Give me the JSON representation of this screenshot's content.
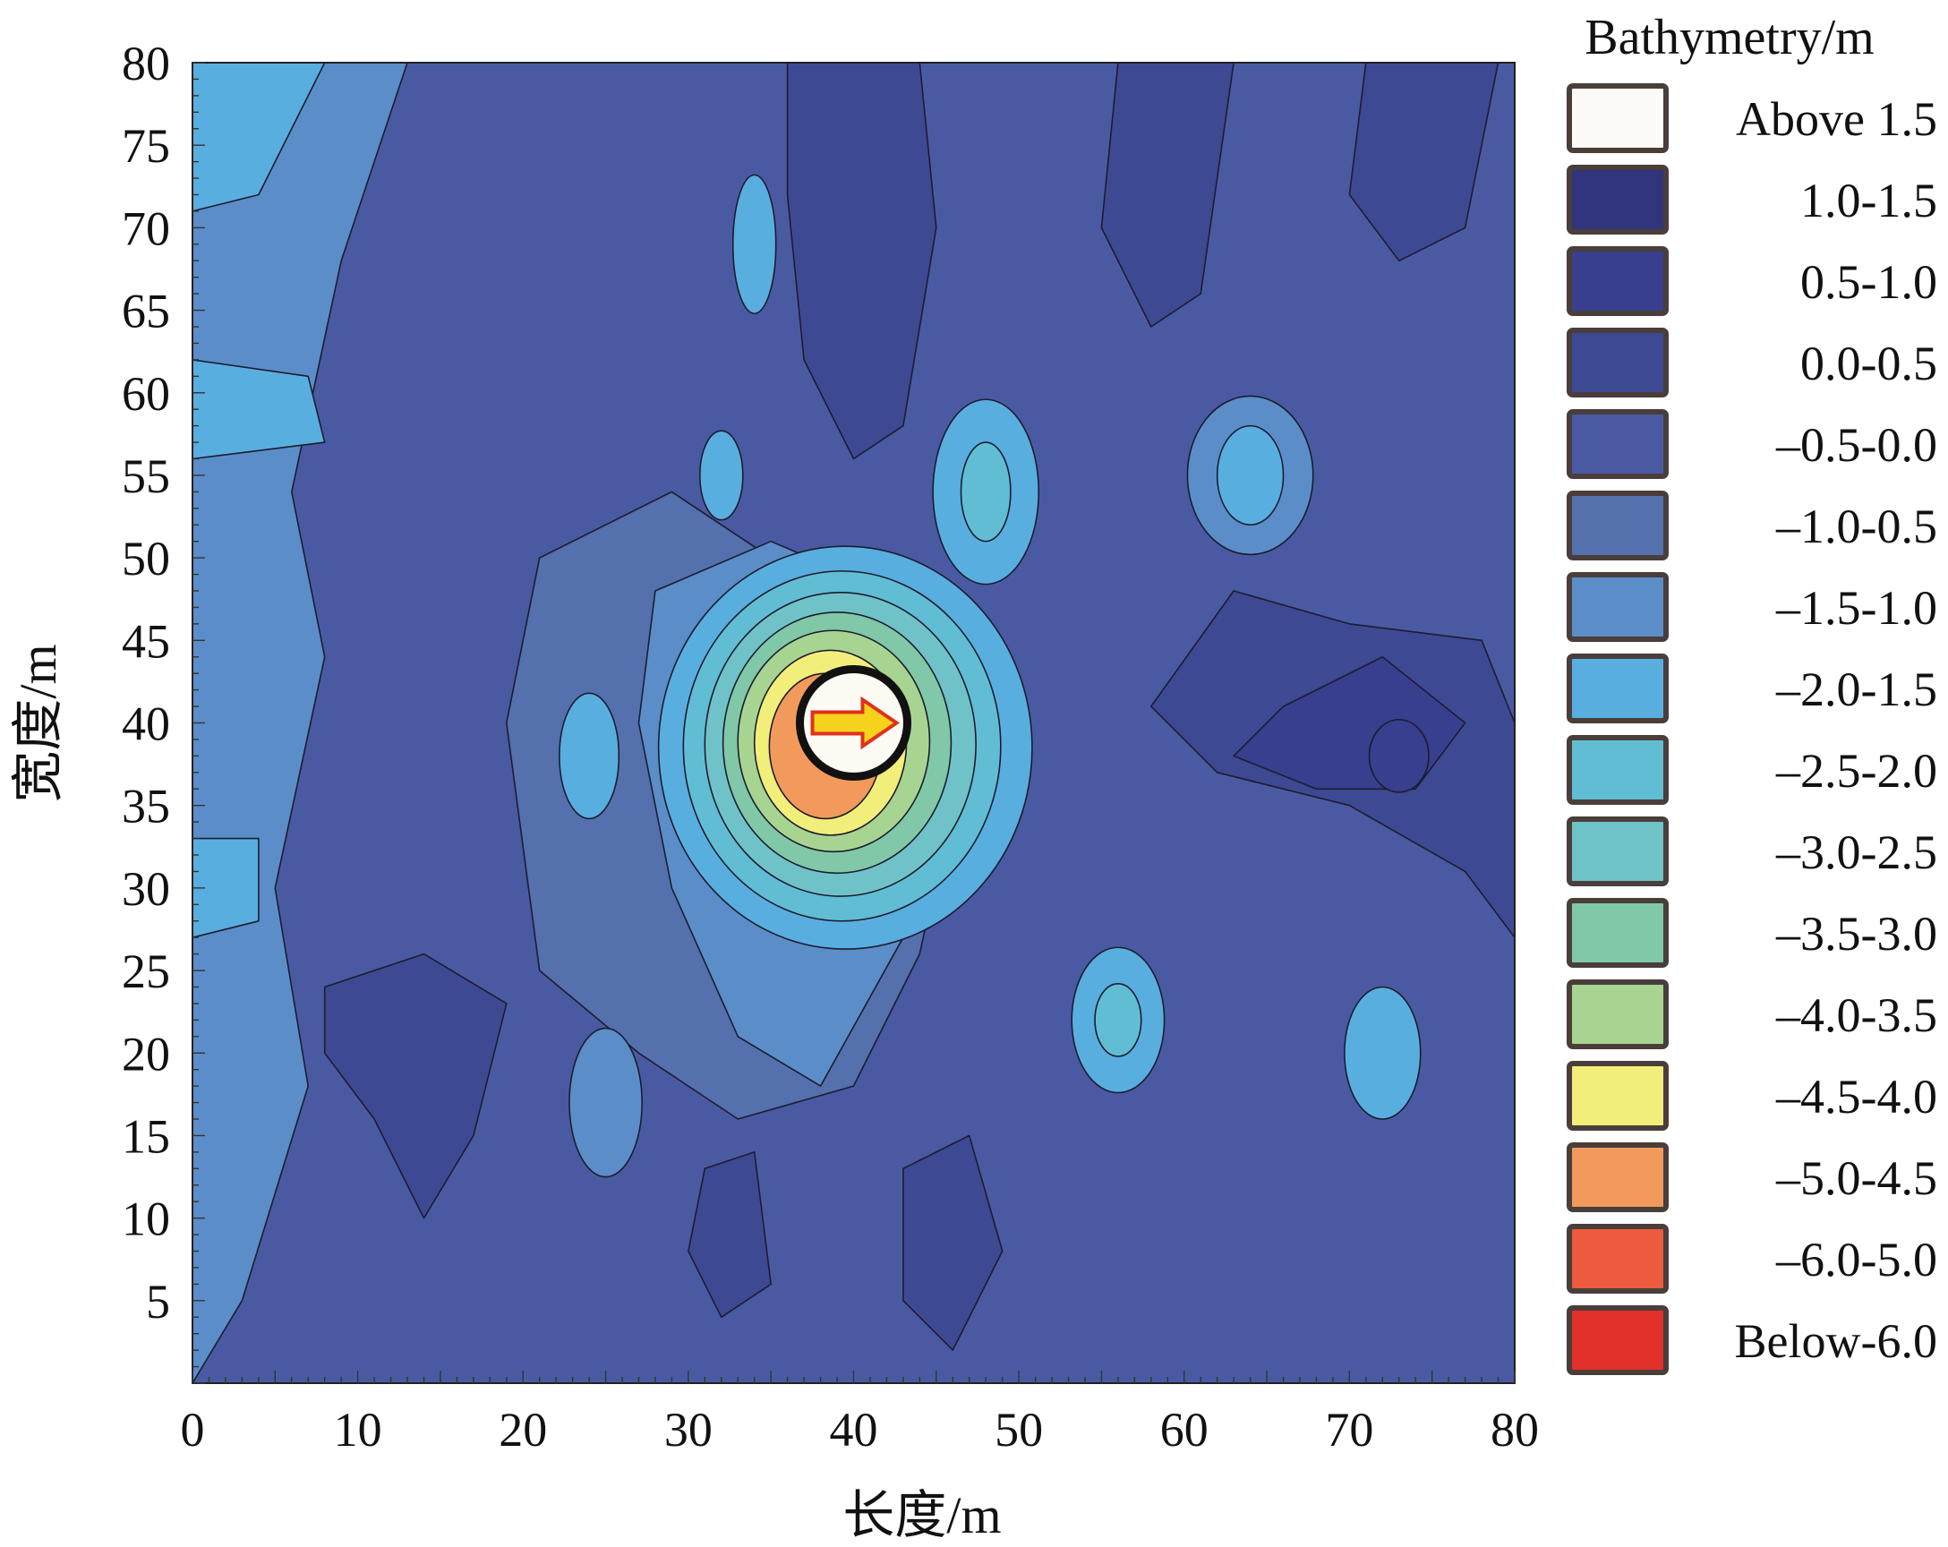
{
  "chart_data": {
    "type": "heatmap",
    "subtype": "filled-contour",
    "title": "",
    "xlabel": "长度/m",
    "ylabel": "宽度/m",
    "xlim": [
      0,
      80
    ],
    "ylim": [
      0,
      80
    ],
    "x_ticks": [
      0,
      10,
      20,
      30,
      40,
      50,
      60,
      70,
      80
    ],
    "y_ticks": [
      5,
      10,
      15,
      20,
      25,
      30,
      35,
      40,
      45,
      50,
      55,
      60,
      65,
      70,
      75,
      80
    ],
    "grid": false,
    "legend": {
      "title": "Bathymetry/m",
      "placement": "right",
      "levels": [
        {
          "label": "Above 1.5",
          "color": "#fdfbf7"
        },
        {
          "label": "1.0-1.5",
          "color": "#30357d"
        },
        {
          "label": "0.5-1.0",
          "color": "#383f8e"
        },
        {
          "label": "0.0-0.5",
          "color": "#3e4994"
        },
        {
          "label": "–0.5-0.0",
          "color": "#4a5aa2"
        },
        {
          "label": "–1.0-0.5",
          "color": "#5470ad"
        },
        {
          "label": "–1.5-1.0",
          "color": "#5b8ec8"
        },
        {
          "label": "–2.0-1.5",
          "color": "#59aee0"
        },
        {
          "label": "–2.5-2.0",
          "color": "#61bdd3"
        },
        {
          "label": "–3.0-2.5",
          "color": "#6fc3c8"
        },
        {
          "label": "–3.5-3.0",
          "color": "#80c8a8"
        },
        {
          "label": "–4.0-3.5",
          "color": "#a8d492"
        },
        {
          "label": "–4.5-4.0",
          "color": "#f2ee7a"
        },
        {
          "label": "–5.0-4.5",
          "color": "#f29a5c"
        },
        {
          "label": "–6.0-5.0",
          "color": "#ec5b3e"
        },
        {
          "label": "Below-6.0",
          "color": "#e2302b"
        }
      ]
    },
    "features": [
      {
        "kind": "scour-pit",
        "center": [
          39,
          38
        ],
        "min_depth_range": "–5.0-4.5"
      },
      {
        "kind": "pile-marker",
        "center": [
          40,
          40
        ],
        "arrow_direction": "right"
      }
    ]
  }
}
